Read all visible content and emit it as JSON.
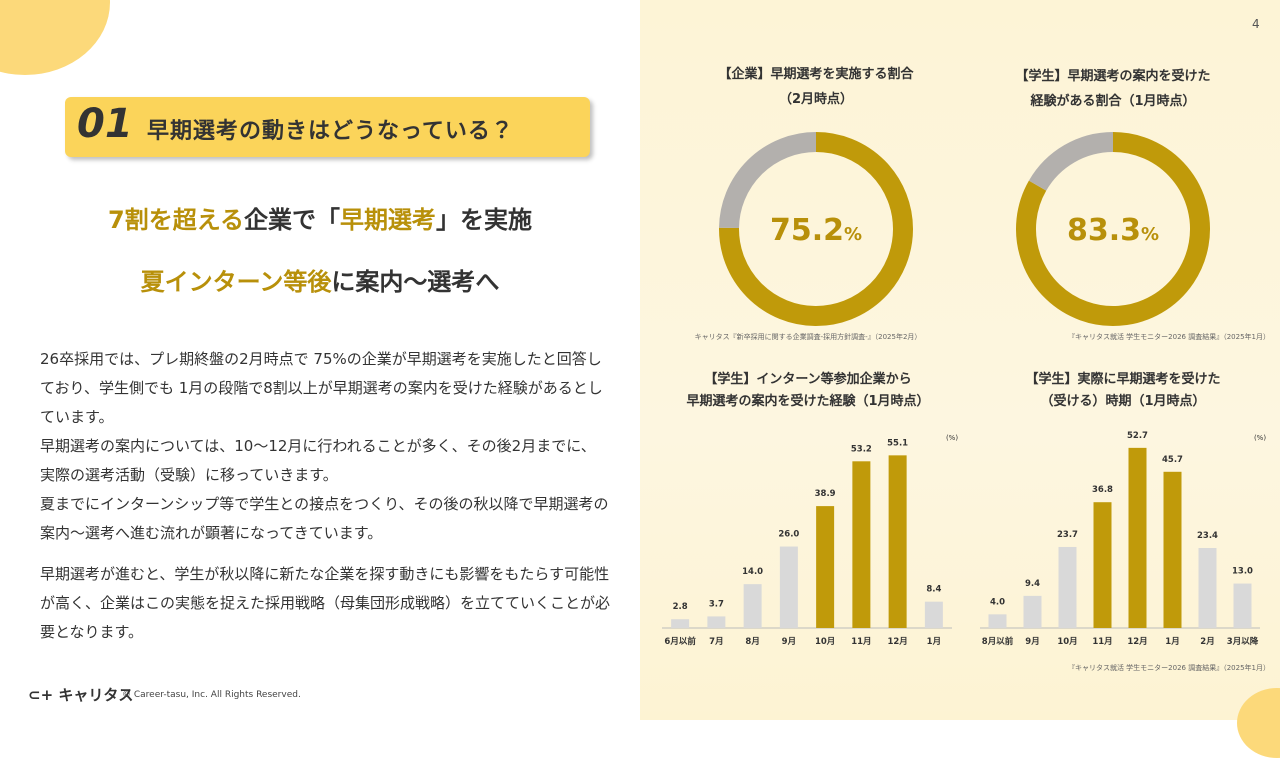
{
  "page_number": "4",
  "badge": "01",
  "heading": "早期選考の動きはどうなっている？",
  "headlines": [
    [
      {
        "text": "7割を超える",
        "emphasis": true
      },
      {
        "text": "企業で「",
        "emphasis": false
      },
      {
        "text": "早期選考",
        "emphasis": true
      },
      {
        "text": "」を実施",
        "emphasis": false
      }
    ],
    [
      {
        "text": "夏インターン等後",
        "emphasis": true
      },
      {
        "text": "に案内～選考へ",
        "emphasis": false
      }
    ]
  ],
  "paragraphs": [
    "26卒採用では、プレ期終盤の2月時点で 75%の企業が早期選考を実施したと回答しており、学生側でも 1月の段階で8割以上が早期選考の案内を受けた経験があるとしています。",
    "早期選考の案内については、10～12月に行われることが多く、その後2月までに、実際の選考活動（受験）に移っていきます。",
    "夏までにインターンシップ等で学生との接点をつくり、その後の秋以降で早期選考の案内～選考へ進む流れが顕著になってきています。",
    "早期選考が進むと、学生が秋以降に新たな企業を探す動きにも影響をもたらす可能性が高く、企業はこの実態を捉えた採用戦略（母集団形成戦略）を立てていくことが必要となります。"
  ],
  "footer": {
    "logo": "キャリタス",
    "copyright": "© Career-tasu, Inc. All Rights Reserved."
  },
  "chart_data": [
    {
      "type": "donut",
      "title": [
        "【企業】早期選考を実施する割合",
        "（2月時点）"
      ],
      "values": [
        75.2,
        24.8
      ],
      "colors": [
        "#c09a0a",
        "#b3b0ad"
      ],
      "unit": "%",
      "source": "キャリタス『新卒採用に関する企業調査-採用方針調査-』（2025年2月）"
    },
    {
      "type": "donut",
      "title": [
        "【学生】早期選考の案内を受けた",
        "経験がある割合（1月時点）"
      ],
      "values": [
        83.3,
        16.7
      ],
      "colors": [
        "#c09a0a",
        "#b3b0ad"
      ],
      "unit": "%",
      "source": "『キャリタス就活 学生モニター2026 調査結果』（2025年1月）"
    },
    {
      "type": "bar",
      "title": [
        "【学生】インターン等参加企業から",
        "早期選考の案内を受けた経験（1月時点）"
      ],
      "categories": [
        "6月以前",
        "7月",
        "8月",
        "9月",
        "10月",
        "11月",
        "12月",
        "1月"
      ],
      "values": [
        2.8,
        3.7,
        14.0,
        26.0,
        38.9,
        53.2,
        55.1,
        8.4
      ],
      "value_labels": [
        "2.8",
        "3.7",
        "14.0",
        "26.0",
        "38.9",
        "53.2",
        "55.1",
        "8.4"
      ],
      "colors": [
        "#d9d9d9",
        "#d9d9d9",
        "#d9d9d9",
        "#d9d9d9",
        "#c09a0a",
        "#c09a0a",
        "#c09a0a",
        "#d9d9d9"
      ],
      "unit": "(%)",
      "ylim": [
        0,
        60
      ]
    },
    {
      "type": "bar",
      "title": [
        "【学生】実際に早期選考を受けた",
        "（受ける）時期（1月時点）"
      ],
      "categories": [
        "8月以前",
        "9月",
        "10月",
        "11月",
        "12月",
        "1月",
        "2月",
        "3月以降"
      ],
      "values": [
        4.0,
        9.4,
        23.7,
        36.8,
        52.7,
        45.7,
        23.4,
        13.0
      ],
      "value_labels": [
        "4.0",
        "9.4",
        "23.7",
        "36.8",
        "52.7",
        "45.7",
        "23.4",
        "13.0"
      ],
      "colors": [
        "#d9d9d9",
        "#d9d9d9",
        "#d9d9d9",
        "#c09a0a",
        "#c09a0a",
        "#c09a0a",
        "#d9d9d9",
        "#d9d9d9"
      ],
      "unit": "(%)",
      "ylim": [
        0,
        55
      ],
      "source": "『キャリタス就活 学生モニター2026 調査結果』（2025年1月）"
    }
  ]
}
